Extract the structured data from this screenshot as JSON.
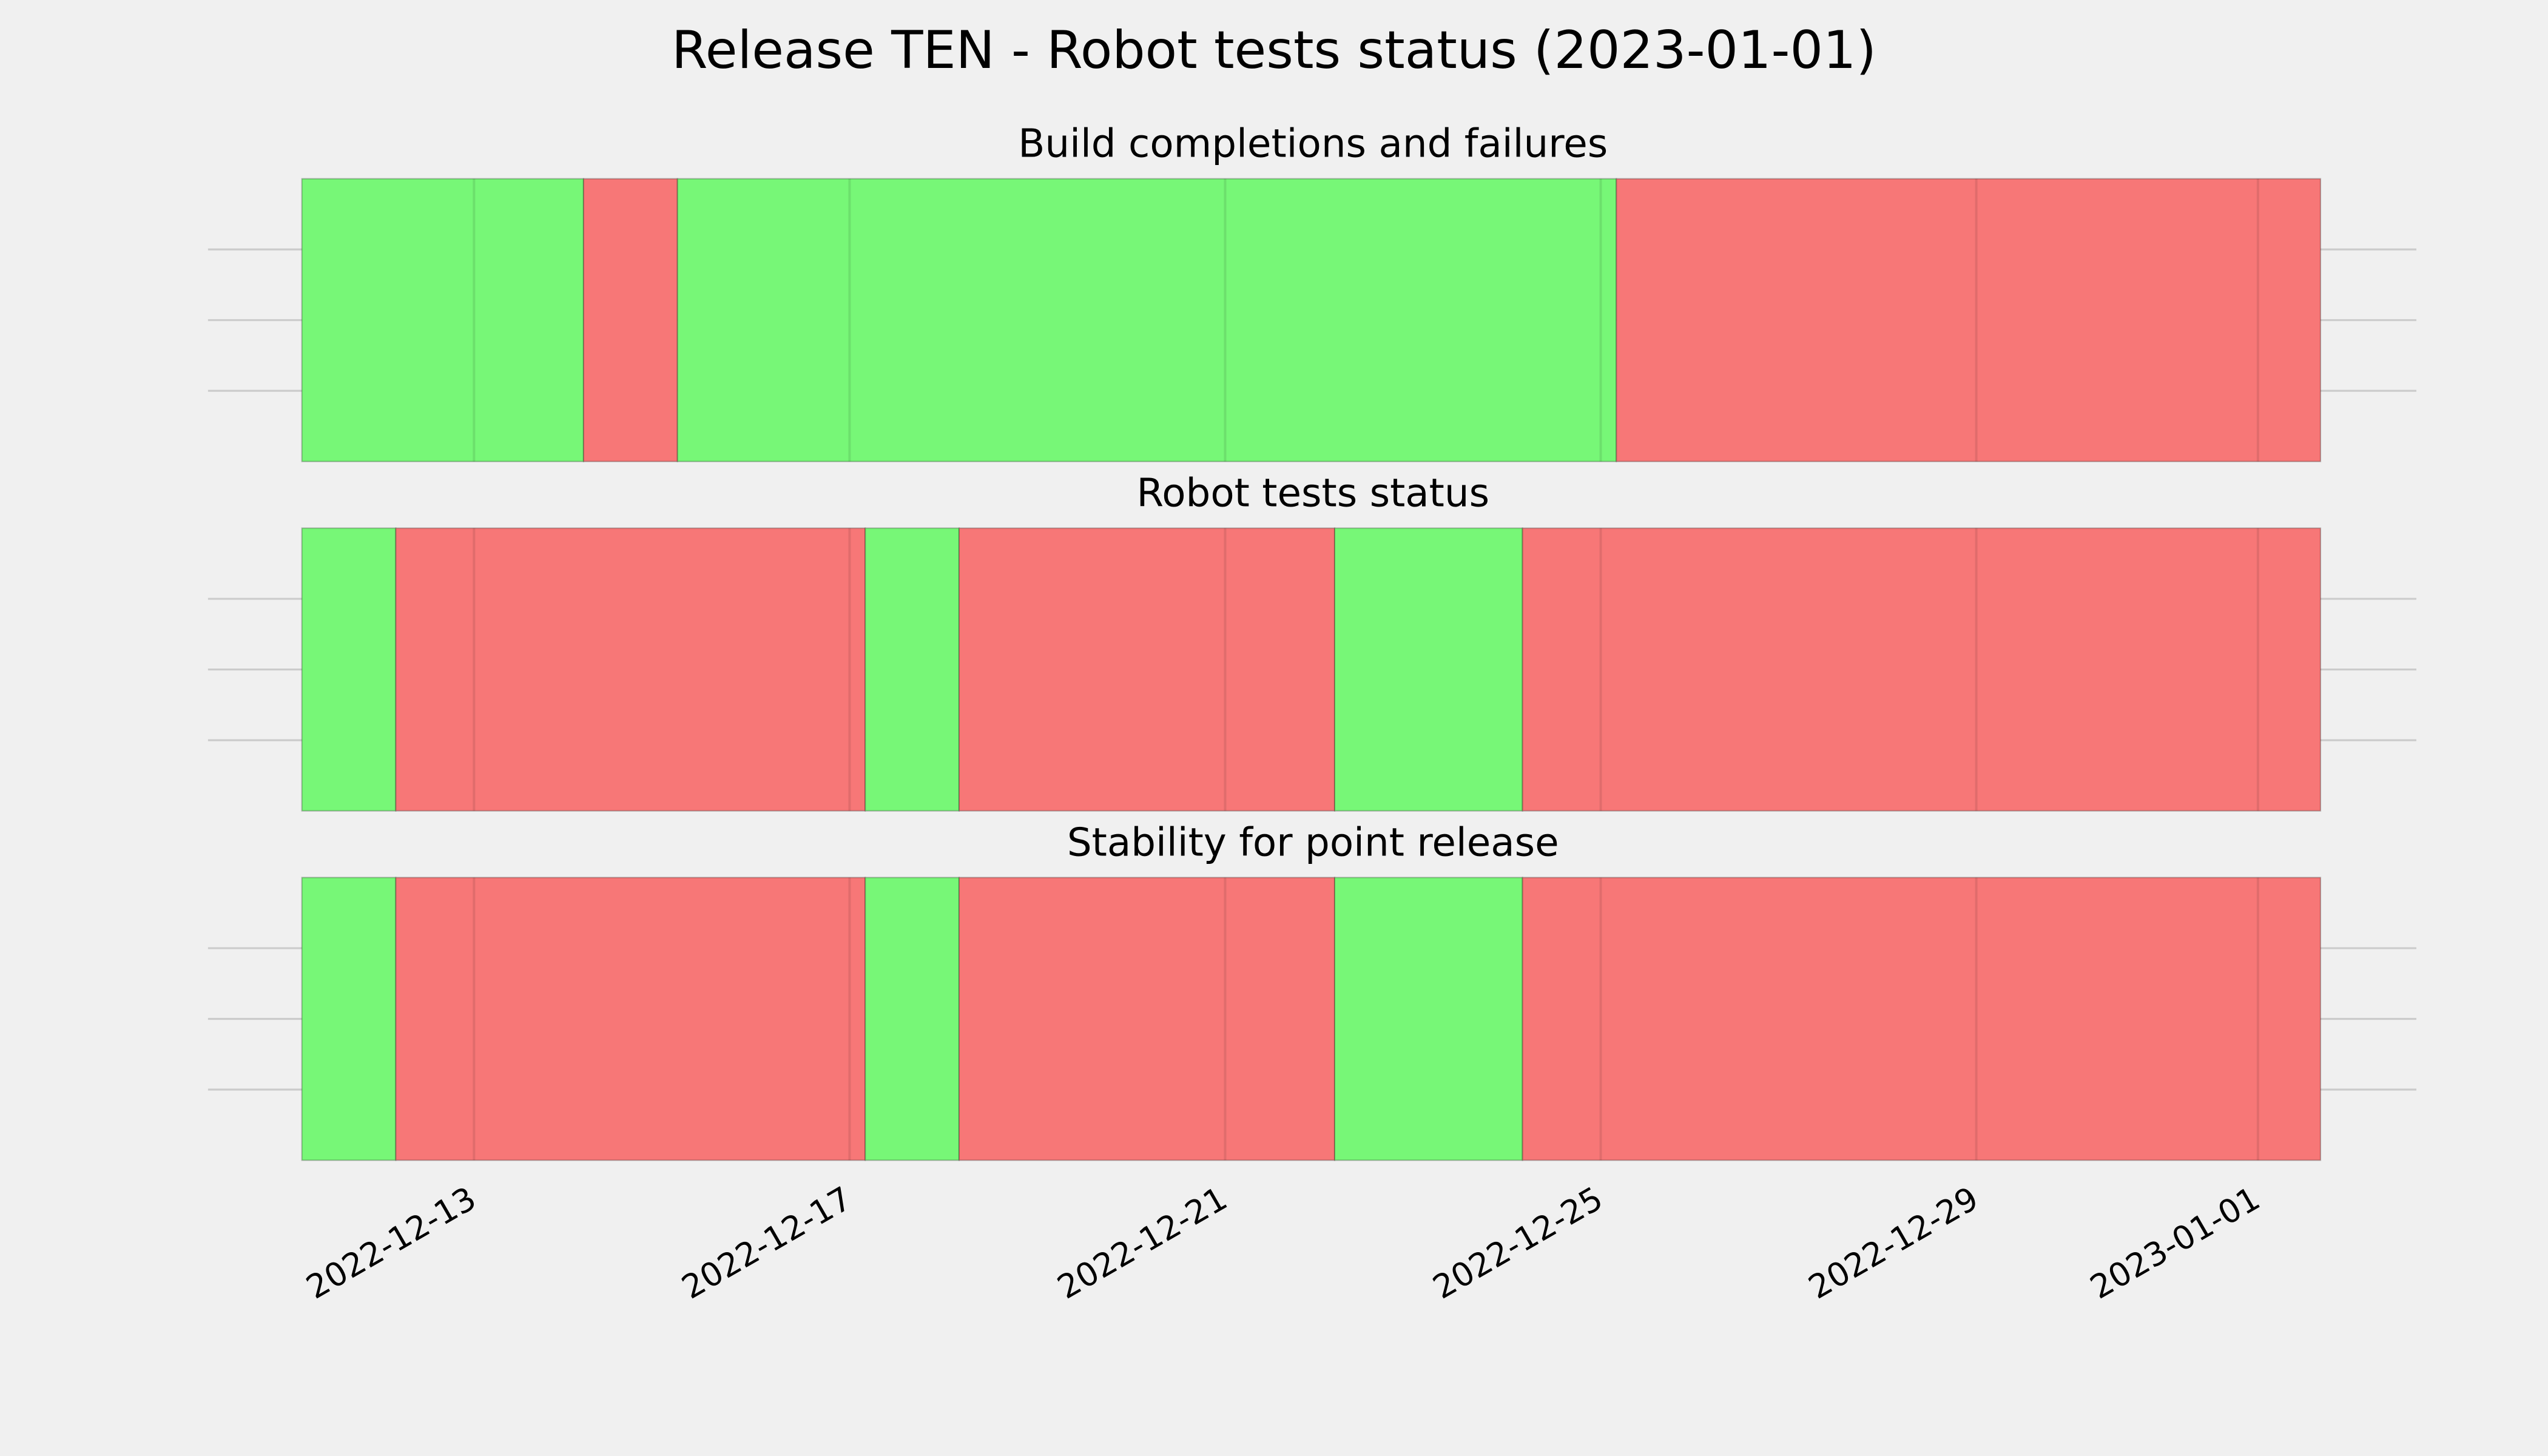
{
  "title": "Release TEN - Robot tests status (2023-01-01)",
  "chart_data": [
    {
      "type": "span",
      "title": "Build completions and failures",
      "xlim": [
        "2022-12-10T04:00",
        "2023-01-02T16:30"
      ],
      "xticks": [
        "2022-12-13",
        "2022-12-17",
        "2022-12-21",
        "2022-12-25",
        "2022-12-29",
        "2023-01-01"
      ],
      "ylim": [
        0,
        1
      ],
      "yticks": [
        0.25,
        0.5,
        0.75
      ],
      "grid": true,
      "segments": [
        {
          "start": "2022-12-11T04:00",
          "end": "2022-12-14T04:00",
          "color": "#77f777"
        },
        {
          "start": "2022-12-14T04:00",
          "end": "2022-12-15T04:00",
          "color": "#f77777"
        },
        {
          "start": "2022-12-15T04:00",
          "end": "2022-12-25T04:00",
          "color": "#77f777"
        },
        {
          "start": "2022-12-25T04:00",
          "end": "2023-01-01T16:00",
          "color": "#f77777"
        }
      ]
    },
    {
      "type": "span",
      "title": "Robot tests status",
      "xlim": [
        "2022-12-10T04:00",
        "2023-01-02T16:30"
      ],
      "xticks": [
        "2022-12-13",
        "2022-12-17",
        "2022-12-21",
        "2022-12-25",
        "2022-12-29",
        "2023-01-01"
      ],
      "ylim": [
        0,
        1
      ],
      "yticks": [
        0.25,
        0.5,
        0.75
      ],
      "grid": true,
      "segments": [
        {
          "start": "2022-12-11T04:00",
          "end": "2022-12-12T04:00",
          "color": "#77f777"
        },
        {
          "start": "2022-12-12T04:00",
          "end": "2022-12-17T04:00",
          "color": "#f77777"
        },
        {
          "start": "2022-12-17T04:00",
          "end": "2022-12-18T04:00",
          "color": "#77f777"
        },
        {
          "start": "2022-12-18T04:00",
          "end": "2022-12-22T04:00",
          "color": "#f77777"
        },
        {
          "start": "2022-12-22T04:00",
          "end": "2022-12-24T04:00",
          "color": "#77f777"
        },
        {
          "start": "2022-12-24T04:00",
          "end": "2023-01-01T16:00",
          "color": "#f77777"
        }
      ]
    },
    {
      "type": "span",
      "title": "Stability for point release",
      "xlim": [
        "2022-12-10T04:00",
        "2023-01-02T16:30"
      ],
      "xticks": [
        "2022-12-13",
        "2022-12-17",
        "2022-12-21",
        "2022-12-25",
        "2022-12-29",
        "2023-01-01"
      ],
      "ylim": [
        0,
        1
      ],
      "yticks": [
        0.25,
        0.5,
        0.75
      ],
      "grid": true,
      "show_xtick_labels": true,
      "segments": [
        {
          "start": "2022-12-11T04:00",
          "end": "2022-12-12T04:00",
          "color": "#77f777"
        },
        {
          "start": "2022-12-12T04:00",
          "end": "2022-12-17T04:00",
          "color": "#f77777"
        },
        {
          "start": "2022-12-17T04:00",
          "end": "2022-12-18T04:00",
          "color": "#77f777"
        },
        {
          "start": "2022-12-18T04:00",
          "end": "2022-12-22T04:00",
          "color": "#f77777"
        },
        {
          "start": "2022-12-22T04:00",
          "end": "2022-12-24T04:00",
          "color": "#77f777"
        },
        {
          "start": "2022-12-24T04:00",
          "end": "2023-01-01T16:00",
          "color": "#f77777"
        }
      ]
    }
  ]
}
